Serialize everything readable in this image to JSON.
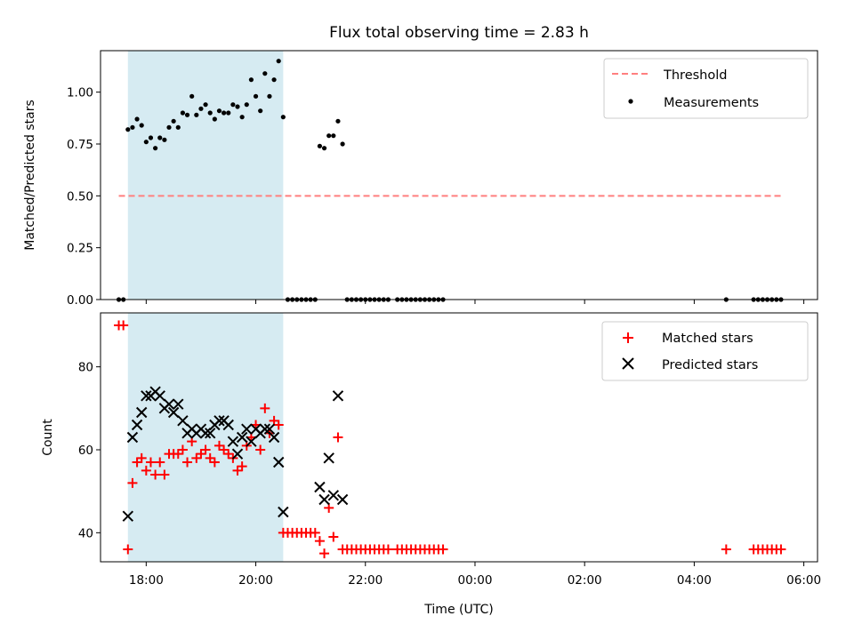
{
  "chart_data": {
    "title": "Flux total observing time = 2.83 h",
    "xlabel": "Time (UTC)",
    "x_tick_labels": [
      "18:00",
      "20:00",
      "22:00",
      "00:00",
      "02:00",
      "04:00",
      "06:00"
    ],
    "x_ticks": [
      "18:00",
      "20:00",
      "22:00",
      "00:00",
      "02:00",
      "04:00",
      "06:00"
    ],
    "xlim": [
      "17:10",
      "06:15"
    ],
    "highlight_span": [
      "17:40",
      "20:30"
    ],
    "highlight_color": "#add8e6",
    "panels": [
      {
        "type": "scatter",
        "ylabel": "Matched/Predicted stars",
        "ylim": [
          0.0,
          1.2
        ],
        "y_ticks": [
          0.0,
          0.25,
          0.5,
          0.75,
          1.0
        ],
        "y_tick_labels": [
          "0.00",
          "0.25",
          "0.50",
          "0.75",
          "1.00"
        ],
        "legend_position": "upper right",
        "threshold": {
          "name": "Threshold",
          "value": 0.5,
          "x_range": [
            "17:30",
            "05:35"
          ],
          "color": "#ff7f7f",
          "style": "dashed"
        },
        "series": [
          {
            "name": "Measurements",
            "color": "#000000",
            "marker": "dot",
            "points": [
              [
                "17:30",
                0.0
              ],
              [
                "17:35",
                0.0
              ],
              [
                "17:40",
                0.82
              ],
              [
                "17:45",
                0.83
              ],
              [
                "17:50",
                0.87
              ],
              [
                "17:55",
                0.84
              ],
              [
                "18:00",
                0.76
              ],
              [
                "18:05",
                0.78
              ],
              [
                "18:10",
                0.73
              ],
              [
                "18:15",
                0.78
              ],
              [
                "18:20",
                0.77
              ],
              [
                "18:25",
                0.83
              ],
              [
                "18:30",
                0.86
              ],
              [
                "18:35",
                0.83
              ],
              [
                "18:40",
                0.9
              ],
              [
                "18:45",
                0.89
              ],
              [
                "18:50",
                0.98
              ],
              [
                "18:55",
                0.89
              ],
              [
                "19:00",
                0.92
              ],
              [
                "19:05",
                0.94
              ],
              [
                "19:10",
                0.9
              ],
              [
                "19:15",
                0.87
              ],
              [
                "19:20",
                0.91
              ],
              [
                "19:25",
                0.9
              ],
              [
                "19:30",
                0.9
              ],
              [
                "19:35",
                0.94
              ],
              [
                "19:40",
                0.93
              ],
              [
                "19:45",
                0.88
              ],
              [
                "19:50",
                0.94
              ],
              [
                "19:55",
                1.06
              ],
              [
                "20:00",
                0.98
              ],
              [
                "20:05",
                0.91
              ],
              [
                "20:10",
                1.09
              ],
              [
                "20:15",
                0.98
              ],
              [
                "20:20",
                1.06
              ],
              [
                "20:25",
                1.15
              ],
              [
                "20:30",
                0.88
              ],
              [
                "20:35",
                0.0
              ],
              [
                "20:40",
                0.0
              ],
              [
                "20:45",
                0.0
              ],
              [
                "20:50",
                0.0
              ],
              [
                "20:55",
                0.0
              ],
              [
                "21:00",
                0.0
              ],
              [
                "21:05",
                0.0
              ],
              [
                "21:10",
                0.74
              ],
              [
                "21:15",
                0.73
              ],
              [
                "21:20",
                0.79
              ],
              [
                "21:25",
                0.79
              ],
              [
                "21:30",
                0.86
              ],
              [
                "21:35",
                0.75
              ],
              [
                "21:40",
                0.0
              ],
              [
                "21:45",
                0.0
              ],
              [
                "21:50",
                0.0
              ],
              [
                "21:55",
                0.0
              ],
              [
                "22:00",
                0.0
              ],
              [
                "22:05",
                0.0
              ],
              [
                "22:10",
                0.0
              ],
              [
                "22:15",
                0.0
              ],
              [
                "22:20",
                0.0
              ],
              [
                "22:25",
                0.0
              ],
              [
                "22:35",
                0.0
              ],
              [
                "22:40",
                0.0
              ],
              [
                "22:45",
                0.0
              ],
              [
                "22:50",
                0.0
              ],
              [
                "22:55",
                0.0
              ],
              [
                "23:00",
                0.0
              ],
              [
                "23:05",
                0.0
              ],
              [
                "23:10",
                0.0
              ],
              [
                "23:15",
                0.0
              ],
              [
                "23:20",
                0.0
              ],
              [
                "23:25",
                0.0
              ],
              [
                "04:35",
                0.0
              ],
              [
                "05:05",
                0.0
              ],
              [
                "05:10",
                0.0
              ],
              [
                "05:15",
                0.0
              ],
              [
                "05:20",
                0.0
              ],
              [
                "05:25",
                0.0
              ],
              [
                "05:30",
                0.0
              ],
              [
                "05:35",
                0.0
              ]
            ]
          }
        ]
      },
      {
        "type": "scatter",
        "ylabel": "Count",
        "ylim": [
          33,
          93
        ],
        "y_ticks": [
          40,
          60,
          80
        ],
        "y_tick_labels": [
          "40",
          "60",
          "80"
        ],
        "legend_position": "upper right",
        "series": [
          {
            "name": "Matched stars",
            "color": "#ff0000",
            "marker": "plus",
            "points": [
              [
                "17:30",
                90
              ],
              [
                "17:35",
                90
              ],
              [
                "17:40",
                36
              ],
              [
                "17:45",
                52
              ],
              [
                "17:50",
                57
              ],
              [
                "17:55",
                58
              ],
              [
                "18:00",
                55
              ],
              [
                "18:05",
                57
              ],
              [
                "18:10",
                54
              ],
              [
                "18:15",
                57
              ],
              [
                "18:20",
                54
              ],
              [
                "18:25",
                59
              ],
              [
                "18:30",
                59
              ],
              [
                "18:35",
                59
              ],
              [
                "18:40",
                60
              ],
              [
                "18:45",
                57
              ],
              [
                "18:50",
                62
              ],
              [
                "18:55",
                58
              ],
              [
                "19:00",
                59
              ],
              [
                "19:05",
                60
              ],
              [
                "19:10",
                58
              ],
              [
                "19:15",
                57
              ],
              [
                "19:20",
                61
              ],
              [
                "19:25",
                60
              ],
              [
                "19:30",
                59
              ],
              [
                "19:35",
                58
              ],
              [
                "19:40",
                55
              ],
              [
                "19:45",
                56
              ],
              [
                "19:50",
                61
              ],
              [
                "19:55",
                63
              ],
              [
                "20:00",
                66
              ],
              [
                "20:05",
                60
              ],
              [
                "20:10",
                70
              ],
              [
                "20:15",
                64
              ],
              [
                "20:20",
                67
              ],
              [
                "20:25",
                66
              ],
              [
                "20:30",
                40
              ],
              [
                "20:35",
                40
              ],
              [
                "20:40",
                40
              ],
              [
                "20:45",
                40
              ],
              [
                "20:50",
                40
              ],
              [
                "20:55",
                40
              ],
              [
                "21:00",
                40
              ],
              [
                "21:05",
                40
              ],
              [
                "21:10",
                38
              ],
              [
                "21:15",
                35
              ],
              [
                "21:20",
                46
              ],
              [
                "21:25",
                39
              ],
              [
                "21:30",
                63
              ],
              [
                "21:35",
                36
              ],
              [
                "21:40",
                36
              ],
              [
                "21:45",
                36
              ],
              [
                "21:50",
                36
              ],
              [
                "21:55",
                36
              ],
              [
                "22:00",
                36
              ],
              [
                "22:05",
                36
              ],
              [
                "22:10",
                36
              ],
              [
                "22:15",
                36
              ],
              [
                "22:20",
                36
              ],
              [
                "22:25",
                36
              ],
              [
                "22:35",
                36
              ],
              [
                "22:40",
                36
              ],
              [
                "22:45",
                36
              ],
              [
                "22:50",
                36
              ],
              [
                "22:55",
                36
              ],
              [
                "23:00",
                36
              ],
              [
                "23:05",
                36
              ],
              [
                "23:10",
                36
              ],
              [
                "23:15",
                36
              ],
              [
                "23:20",
                36
              ],
              [
                "23:25",
                36
              ],
              [
                "04:35",
                36
              ],
              [
                "05:05",
                36
              ],
              [
                "05:10",
                36
              ],
              [
                "05:15",
                36
              ],
              [
                "05:20",
                36
              ],
              [
                "05:25",
                36
              ],
              [
                "05:30",
                36
              ],
              [
                "05:35",
                36
              ]
            ]
          },
          {
            "name": "Predicted stars",
            "color": "#000000",
            "marker": "x",
            "points": [
              [
                "17:40",
                44
              ],
              [
                "17:45",
                63
              ],
              [
                "17:50",
                66
              ],
              [
                "17:55",
                69
              ],
              [
                "18:00",
                73
              ],
              [
                "18:05",
                73
              ],
              [
                "18:10",
                74
              ],
              [
                "18:15",
                73
              ],
              [
                "18:20",
                70
              ],
              [
                "18:25",
                71
              ],
              [
                "18:30",
                69
              ],
              [
                "18:35",
                71
              ],
              [
                "18:40",
                67
              ],
              [
                "18:45",
                64
              ],
              [
                "18:50",
                65
              ],
              [
                "18:55",
                64
              ],
              [
                "19:00",
                65
              ],
              [
                "19:05",
                64
              ],
              [
                "19:10",
                64
              ],
              [
                "19:15",
                66
              ],
              [
                "19:20",
                67
              ],
              [
                "19:25",
                67
              ],
              [
                "19:30",
                66
              ],
              [
                "19:35",
                62
              ],
              [
                "19:40",
                59
              ],
              [
                "19:45",
                63
              ],
              [
                "19:50",
                65
              ],
              [
                "19:55",
                62
              ],
              [
                "20:00",
                65
              ],
              [
                "20:05",
                64
              ],
              [
                "20:10",
                65
              ],
              [
                "20:15",
                65
              ],
              [
                "20:20",
                63
              ],
              [
                "20:25",
                57
              ],
              [
                "20:30",
                45
              ],
              [
                "21:10",
                51
              ],
              [
                "21:15",
                48
              ],
              [
                "21:20",
                58
              ],
              [
                "21:25",
                49
              ],
              [
                "21:30",
                73
              ],
              [
                "21:35",
                48
              ]
            ]
          }
        ]
      }
    ]
  }
}
